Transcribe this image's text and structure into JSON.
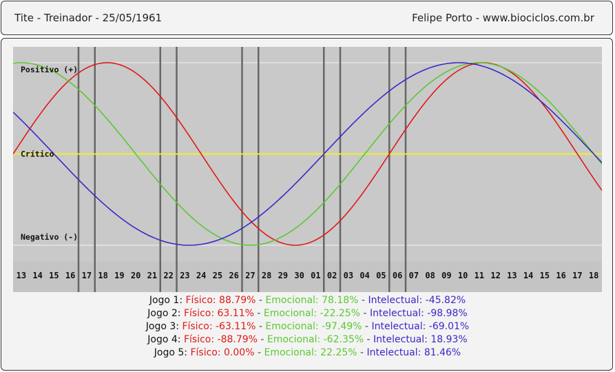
{
  "header": {
    "left_text": "Tite - Treinador -  25/05/1961",
    "right_text": "Felipe Porto  -  www.biociclos.com.br"
  },
  "chart_data": {
    "type": "line",
    "title": "",
    "day_labels": [
      "13",
      "14",
      "15",
      "16",
      "17",
      "18",
      "19",
      "20",
      "21",
      "22",
      "23",
      "24",
      "25",
      "26",
      "27",
      "28",
      "29",
      "30",
      "01",
      "02",
      "03",
      "04",
      "05",
      "06",
      "07",
      "08",
      "09",
      "10",
      "11",
      "12",
      "13",
      "14",
      "15",
      "16",
      "17",
      "18"
    ],
    "ylim": [
      -100,
      100
    ],
    "zone_labels": {
      "positive": "Positivo (+)",
      "critical": "Crítico",
      "negative": "Negativo (-)"
    },
    "series": [
      {
        "name": "Físico",
        "color": "#e01818",
        "period": 23,
        "values": [
          -13.6,
          13.6,
          39.8,
          63.1,
          81.7,
          94.2,
          99.8,
          97.9,
          88.8,
          73.1,
          52.0,
          27.0,
          0.0,
          -27.0,
          -52.0,
          -73.1,
          -88.8,
          -97.9,
          -99.8,
          -94.2,
          -81.7,
          -63.1,
          -39.8,
          -13.6,
          13.6,
          39.8,
          63.1,
          81.7,
          94.2,
          99.8,
          97.9,
          88.8,
          73.1,
          52.0,
          27.0,
          0.0,
          -27.0,
          -52.0
        ]
      },
      {
        "name": "Emocional",
        "color": "#5bc832",
        "period": 28,
        "values": [
          97.5,
          100.0,
          97.5,
          90.1,
          78.2,
          62.3,
          43.4,
          22.3,
          0.0,
          -22.3,
          -43.4,
          -62.3,
          -78.2,
          -90.1,
          -97.5,
          -100.0,
          -97.5,
          -90.1,
          -78.2,
          -62.3,
          -43.4,
          -22.3,
          0.0,
          22.3,
          43.4,
          62.3,
          78.2,
          90.1,
          97.5,
          100.0,
          97.5,
          90.1,
          78.2,
          62.3,
          43.4,
          22.3,
          0.0,
          -22.3
        ]
      },
      {
        "name": "Intelectual",
        "color": "#3a28c8",
        "period": 33,
        "values": [
          54.1,
          37.2,
          18.9,
          0.0,
          -18.9,
          -37.2,
          -54.1,
          -69.0,
          -81.5,
          -91.0,
          -97.2,
          -99.8,
          -98.9,
          -94.5,
          -86.6,
          -75.6,
          -61.8,
          -45.8,
          -28.1,
          -9.5,
          9.5,
          28.1,
          45.8,
          61.8,
          75.6,
          86.6,
          94.5,
          98.9,
          99.8,
          97.2,
          91.0,
          81.5,
          69.0,
          54.1,
          37.2,
          18.9,
          0.0,
          -18.9
        ]
      }
    ],
    "game_marker_positions": [
      4,
      5,
      9,
      10,
      14,
      15,
      19,
      20,
      23,
      24
    ],
    "grid": true
  },
  "games": [
    {
      "label": "Jogo 1:",
      "fisico": "Físico: 88.79%",
      "emocional": "Emocional: 78.18%",
      "intelectual": "Intelectual: -45.82%"
    },
    {
      "label": "Jogo 2:",
      "fisico": "Físico: 63.11%",
      "emocional": "Emocional: -22.25%",
      "intelectual": "Intelectual: -98.98%"
    },
    {
      "label": "Jogo 3:",
      "fisico": "Físico: -63.11%",
      "emocional": "Emocional: -97.49%",
      "intelectual": "Intelectual: -69.01%"
    },
    {
      "label": "Jogo 4:",
      "fisico": "Físico: -88.79%",
      "emocional": "Emocional: -62.35%",
      "intelectual": "Intelectual: 18.93%"
    },
    {
      "label": "Jogo 5:",
      "fisico": "Físico: 0.00%",
      "emocional": "Emocional: 22.25%",
      "intelectual": "Intelectual: 81.46%"
    }
  ],
  "separator": " - "
}
